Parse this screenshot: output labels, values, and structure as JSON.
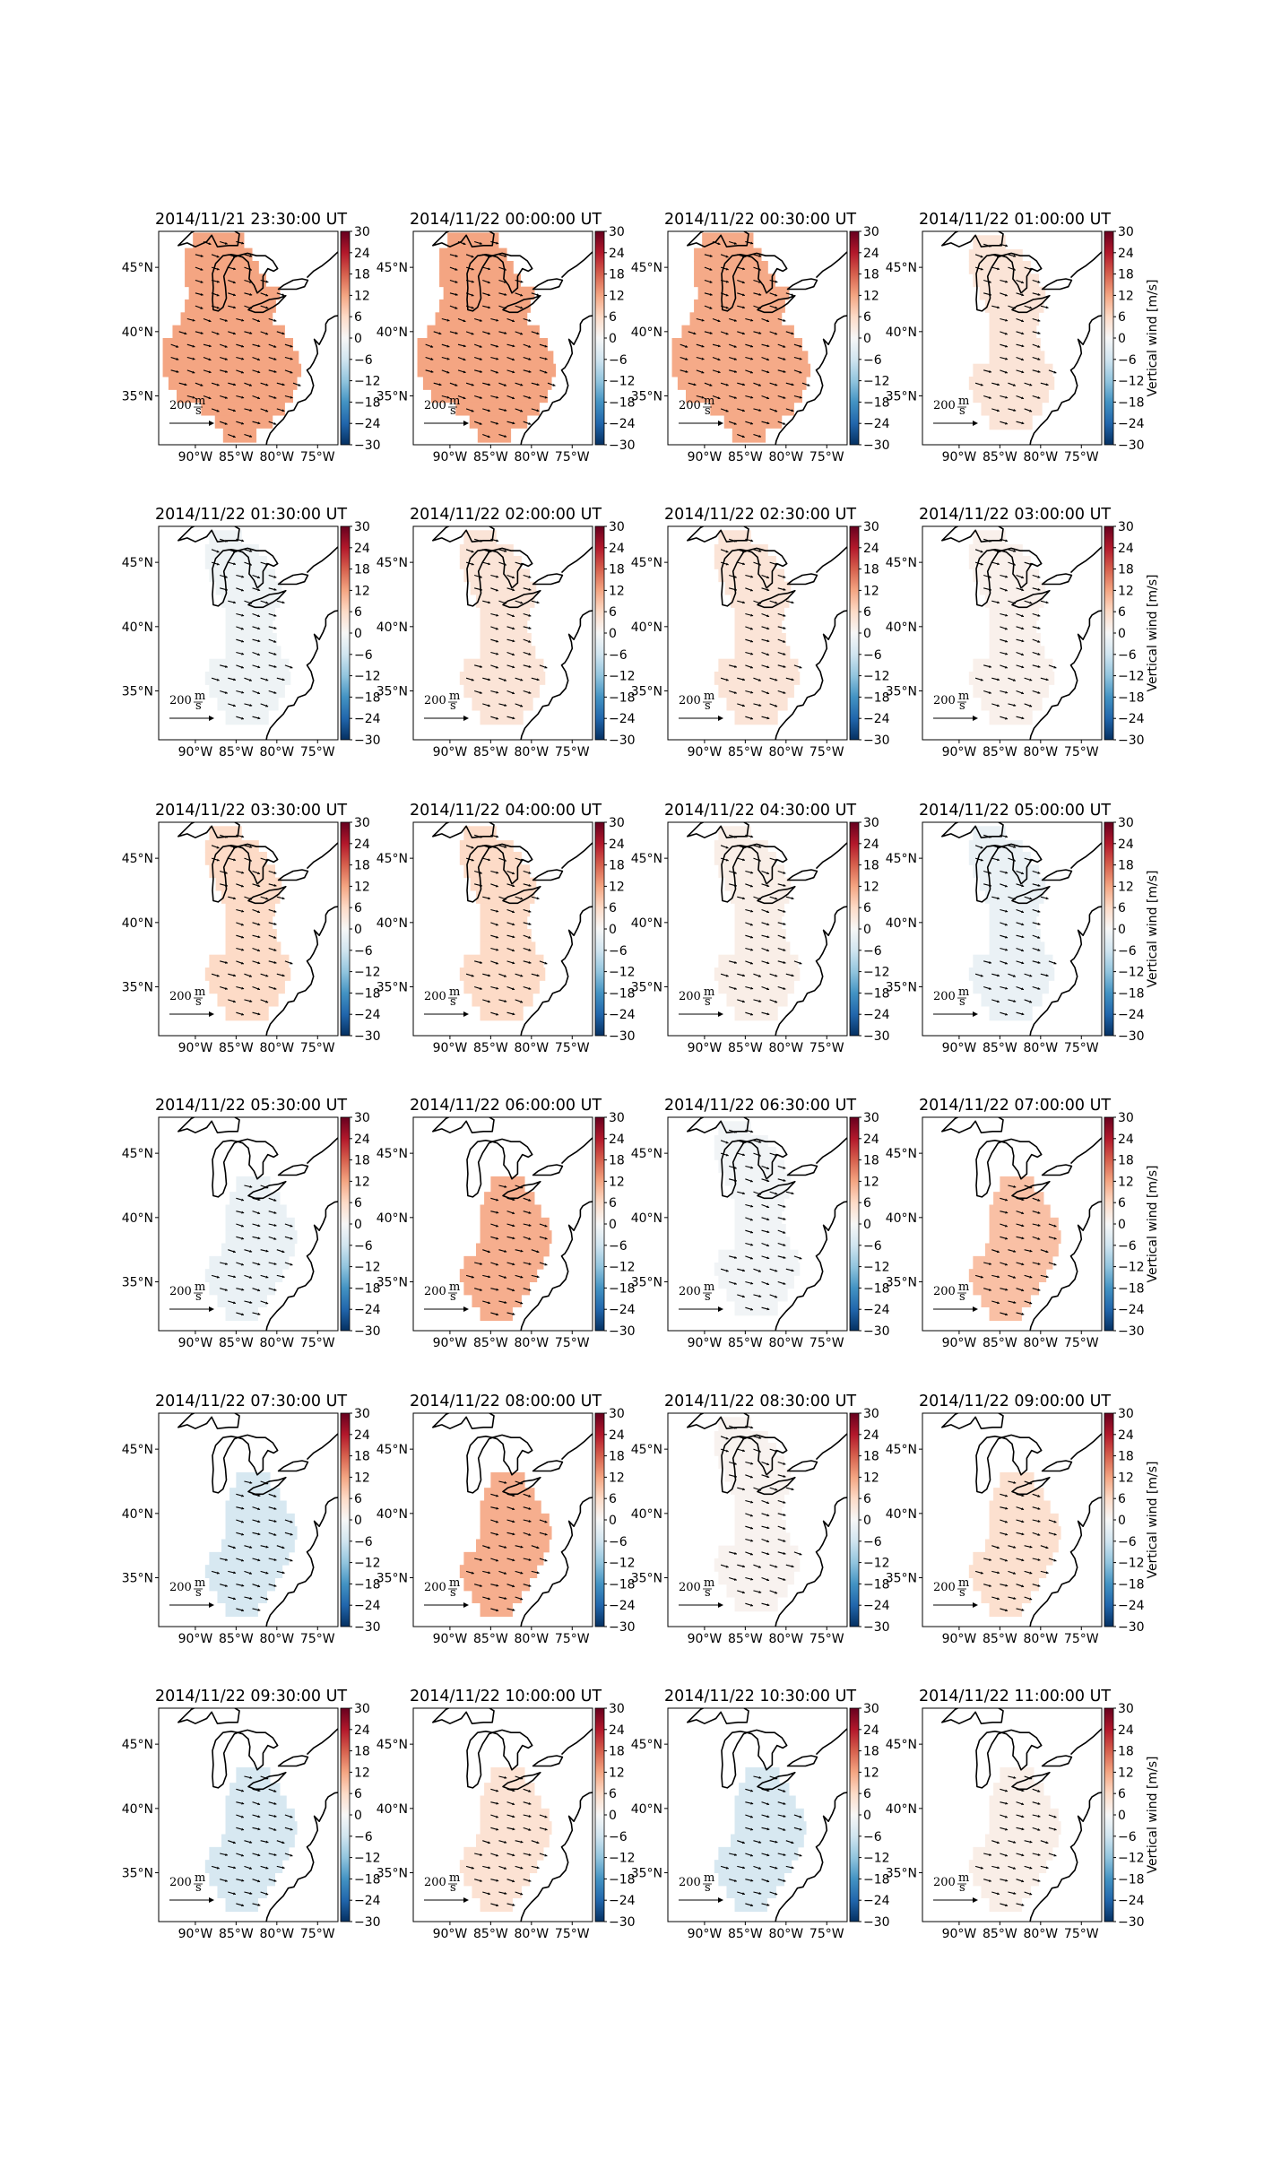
{
  "figure": {
    "colorbar_label": "Vertical wind [m/s]",
    "colorbar_ticks": [
      "30",
      "24",
      "18",
      "12",
      "6",
      "0",
      "−6",
      "−12",
      "−18",
      "−24",
      "−30"
    ],
    "colorbar_range": [
      -30,
      30
    ],
    "lat_labels": [
      "45°N",
      "40°N",
      "35°N"
    ],
    "lon_labels": [
      "90°W",
      "85°W",
      "80°W",
      "75°W"
    ],
    "arrow_key": {
      "value": "200",
      "unit": "m/s"
    },
    "colors": {
      "positive": "#b2182b",
      "negative": "#2166ac",
      "neutral": "#f7f7f7"
    },
    "panels": [
      {
        "title": "2014/11/21 23:30:00 UT",
        "vertical_wind": 12.0,
        "region": "big"
      },
      {
        "title": "2014/11/22 00:00:00 UT",
        "vertical_wind": 12.0,
        "region": "big"
      },
      {
        "title": "2014/11/22 00:30:00 UT",
        "vertical_wind": 11.5,
        "region": "big"
      },
      {
        "title": "2014/11/22 01:00:00 UT",
        "vertical_wind": 4.0,
        "region": "mid"
      },
      {
        "title": "2014/11/22 01:30:00 UT",
        "vertical_wind": -1.5,
        "region": "mid"
      },
      {
        "title": "2014/11/22 02:00:00 UT",
        "vertical_wind": 4.0,
        "region": "mid"
      },
      {
        "title": "2014/11/22 02:30:00 UT",
        "vertical_wind": 4.0,
        "region": "mid"
      },
      {
        "title": "2014/11/22 03:00:00 UT",
        "vertical_wind": 1.5,
        "region": "mid"
      },
      {
        "title": "2014/11/22 03:30:00 UT",
        "vertical_wind": 6.0,
        "region": "mid"
      },
      {
        "title": "2014/11/22 04:00:00 UT",
        "vertical_wind": 6.0,
        "region": "mid"
      },
      {
        "title": "2014/11/22 04:30:00 UT",
        "vertical_wind": 2.0,
        "region": "mid"
      },
      {
        "title": "2014/11/22 05:00:00 UT",
        "vertical_wind": -2.0,
        "region": "mid"
      },
      {
        "title": "2014/11/22 05:30:00 UT",
        "vertical_wind": -2.0,
        "region": "small"
      },
      {
        "title": "2014/11/22 06:00:00 UT",
        "vertical_wind": 11.0,
        "region": "small"
      },
      {
        "title": "2014/11/22 06:30:00 UT",
        "vertical_wind": -1.0,
        "region": "mid"
      },
      {
        "title": "2014/11/22 07:00:00 UT",
        "vertical_wind": 9.0,
        "region": "small"
      },
      {
        "title": "2014/11/22 07:30:00 UT",
        "vertical_wind": -5.0,
        "region": "small"
      },
      {
        "title": "2014/11/22 08:00:00 UT",
        "vertical_wind": 11.0,
        "region": "small"
      },
      {
        "title": "2014/11/22 08:30:00 UT",
        "vertical_wind": 1.0,
        "region": "mid"
      },
      {
        "title": "2014/11/22 09:00:00 UT",
        "vertical_wind": 5.0,
        "region": "small"
      },
      {
        "title": "2014/11/22 09:30:00 UT",
        "vertical_wind": -5.0,
        "region": "small"
      },
      {
        "title": "2014/11/22 10:00:00 UT",
        "vertical_wind": 4.5,
        "region": "small"
      },
      {
        "title": "2014/11/22 10:30:00 UT",
        "vertical_wind": -5.0,
        "region": "small"
      },
      {
        "title": "2014/11/22 11:00:00 UT",
        "vertical_wind": 2.0,
        "region": "small"
      }
    ]
  }
}
